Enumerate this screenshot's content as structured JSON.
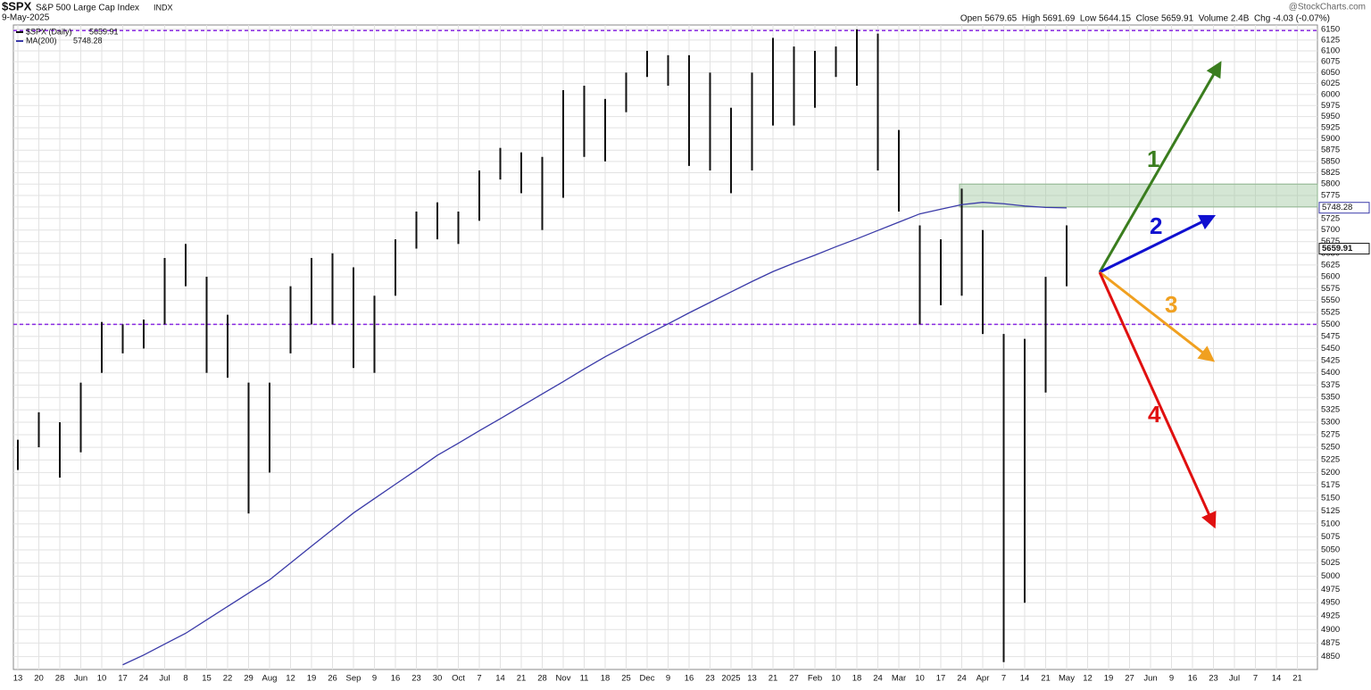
{
  "header": {
    "symbol": "$SPX",
    "name": "S&P 500 Large Cap Index",
    "exchange": "INDX",
    "date": "9-May-2025",
    "watermark": "@StockCharts.com",
    "quote": "Open 5679.65  High 5691.69  Low 5644.15  Close 5659.91  Volume 2.4B  Chg -4.03 (-0.07%)"
  },
  "chart_data": {
    "type": "ohlc",
    "log_scale": true,
    "grid": true,
    "categories": [
      "13",
      "20",
      "28",
      "Jun",
      "10",
      "17",
      "24",
      "Jul",
      "8",
      "15",
      "22",
      "29",
      "Aug",
      "12",
      "19",
      "26",
      "Sep",
      "9",
      "16",
      "23",
      "30",
      "Oct",
      "7",
      "14",
      "21",
      "28",
      "Nov",
      "11",
      "18",
      "25",
      "Dec",
      "9",
      "16",
      "23",
      "2025",
      "13",
      "21",
      "27",
      "Feb",
      "10",
      "18",
      "24",
      "Mar",
      "10",
      "17",
      "24",
      "Apr",
      "7",
      "14",
      "21",
      "May",
      "12",
      "19",
      "27",
      "Jun",
      "9",
      "16",
      "23",
      "Jul",
      "7",
      "14",
      "21"
    ],
    "series": [
      {
        "name": "$SPX (Daily)",
        "last": "5659.91",
        "color": "#111111",
        "low": [
          5205,
          5250,
          5190,
          5240,
          5400,
          5440,
          5450,
          5500,
          5580,
          5400,
          5390,
          5120,
          5200,
          5440,
          5500,
          5500,
          5410,
          5400,
          5560,
          5660,
          5680,
          5670,
          5720,
          5810,
          5780,
          5700,
          5770,
          5860,
          5850,
          5960,
          6040,
          6020,
          5840,
          5830,
          5780,
          5830,
          5930,
          5930,
          5970,
          6040,
          6020,
          5830,
          5740,
          5500,
          5540,
          5560,
          5480,
          4840,
          4950,
          5360,
          5580,
          null,
          null,
          null,
          null,
          null,
          null,
          null,
          null,
          null,
          null,
          null
        ],
        "high": [
          5265,
          5320,
          5300,
          5380,
          5505,
          5500,
          5510,
          5640,
          5670,
          5600,
          5520,
          5380,
          5380,
          5580,
          5640,
          5650,
          5620,
          5560,
          5680,
          5740,
          5760,
          5740,
          5830,
          5880,
          5870,
          5860,
          6010,
          6020,
          5990,
          6050,
          6100,
          6090,
          6090,
          6050,
          5970,
          6050,
          6130,
          6110,
          6100,
          6110,
          6150,
          6140,
          5920,
          5710,
          5680,
          5790,
          5700,
          5480,
          5470,
          5600,
          5710,
          null,
          null,
          null,
          null,
          null,
          null,
          null,
          null,
          null,
          null,
          null
        ]
      },
      {
        "name": "MA(200)",
        "last": "5748.28",
        "color": "#3a3aa8",
        "type": "line",
        "values": [
          null,
          null,
          null,
          null,
          null,
          4835,
          4853,
          4873,
          4893,
          4918,
          4943,
          4968,
          4993,
          5025,
          5057,
          5089,
          5121,
          5149,
          5177,
          5205,
          5234,
          5258,
          5283,
          5307,
          5332,
          5357,
          5382,
          5408,
          5433,
          5456,
          5479,
          5501,
          5524,
          5546,
          5568,
          5590,
          5611,
          5629,
          5646,
          5664,
          5681,
          5699,
          5717,
          5735,
          5745,
          5755,
          5760,
          5757,
          5752,
          5749,
          5748,
          null,
          null,
          null,
          null,
          null,
          null,
          null,
          null,
          null,
          null,
          null
        ]
      }
    ],
    "hlines": [
      6147,
      5500
    ],
    "hline_color": "#8a2be2",
    "zone": [
      5750,
      5800
    ],
    "zone_color": "#9fc79f",
    "annotations": [
      "1",
      "2",
      "3",
      "4"
    ],
    "ylim": [
      4833,
      6160
    ],
    "yticks": [
      4850,
      4875,
      4900,
      4925,
      4950,
      4975,
      5000,
      5025,
      5050,
      5075,
      5100,
      5125,
      5150,
      5175,
      5200,
      5225,
      5250,
      5275,
      5300,
      5325,
      5350,
      5375,
      5400,
      5425,
      5450,
      5475,
      5500,
      5525,
      5550,
      5575,
      5600,
      5625,
      5650,
      5675,
      5700,
      5725,
      5750,
      5775,
      5800,
      5825,
      5850,
      5875,
      5900,
      5925,
      5950,
      5975,
      6000,
      6025,
      6050,
      6075,
      6100,
      6125,
      6150
    ]
  }
}
